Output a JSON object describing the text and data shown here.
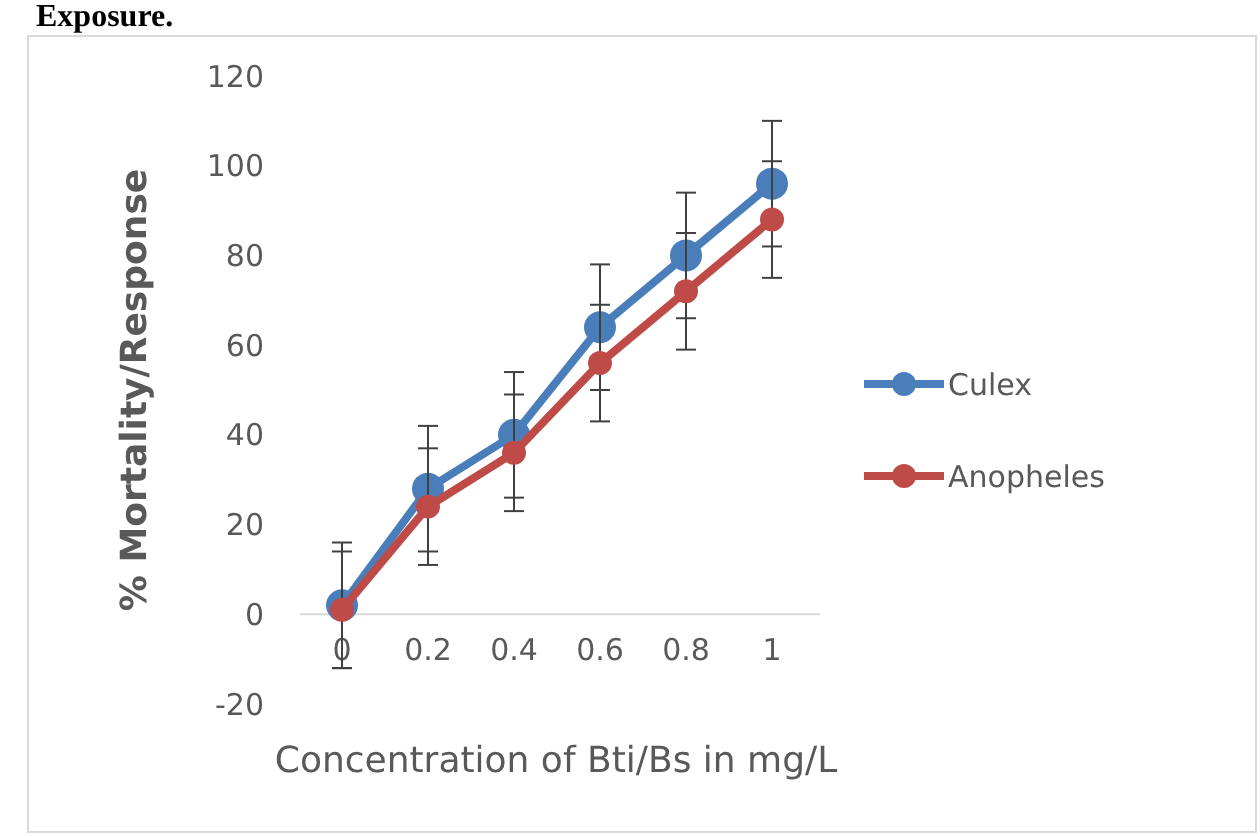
{
  "chart_data": {
    "type": "line",
    "title": "Exposure.",
    "xlabel": "Concentration of Bti/Bs in mg/L",
    "ylabel": "% Mortality/Response",
    "categories": [
      "0",
      "0.2",
      "0.4",
      "0.6",
      "0.8",
      "1"
    ],
    "series": [
      {
        "name": "Culex",
        "color": "#4a7ebb",
        "values": [
          2,
          28,
          40,
          64,
          80,
          96
        ],
        "errors": [
          14,
          14,
          14,
          14,
          14,
          14
        ]
      },
      {
        "name": "Anopheles",
        "color": "#be4b48",
        "values": [
          1,
          24,
          36,
          56,
          72,
          88
        ],
        "errors": [
          13,
          13,
          13,
          13,
          13,
          13
        ]
      }
    ],
    "ylim": [
      -20,
      120
    ],
    "yticks": [
      -20,
      0,
      20,
      40,
      60,
      80,
      100,
      120
    ],
    "grid": false,
    "legend": "right",
    "marker": "circle",
    "line_style": "solid"
  }
}
